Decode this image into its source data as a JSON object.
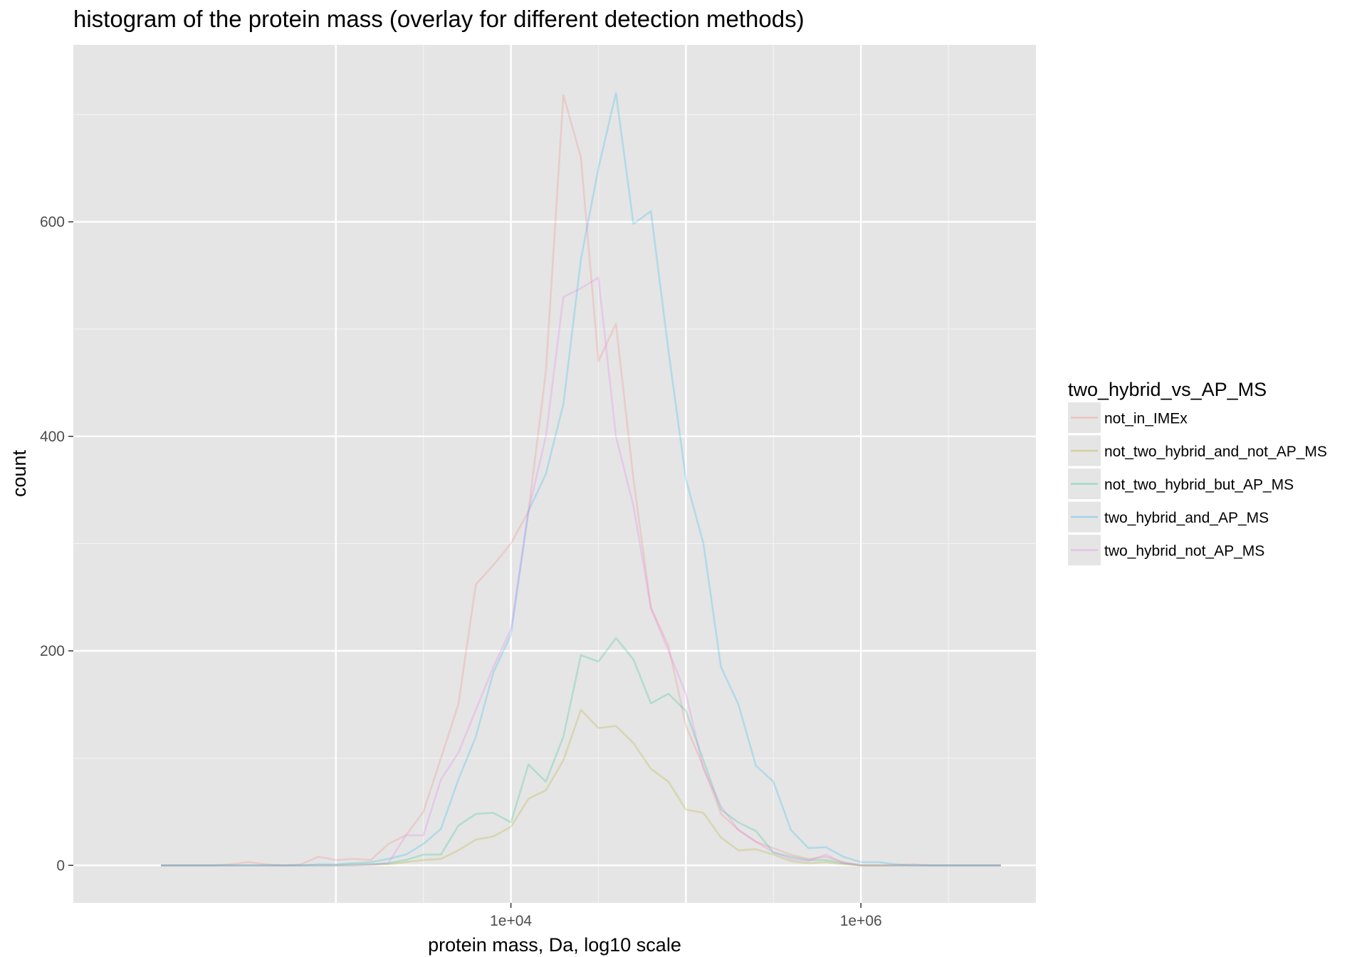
{
  "chart_data": {
    "type": "line",
    "title": "histogram of the protein mass (overlay for different detection methods)",
    "xlabel": "protein mass, Da, log10 scale",
    "ylabel": "count",
    "x_scale": "log10",
    "xlim": [
      31.6,
      10000000
    ],
    "ylim": [
      -35,
      765
    ],
    "x_ticks": [
      {
        "value": 10000,
        "label": "1e+04"
      },
      {
        "value": 1000000,
        "label": "1e+06"
      }
    ],
    "y_ticks": [
      {
        "value": 0,
        "label": "0"
      },
      {
        "value": 200,
        "label": "200"
      },
      {
        "value": 400,
        "label": "400"
      },
      {
        "value": 600,
        "label": "600"
      }
    ],
    "grid": true,
    "background": "#e5e5e5",
    "legend": {
      "title": "two_hybrid_vs_AP_MS",
      "position": "right"
    },
    "x": [
      100,
      126,
      158,
      200,
      251,
      316,
      398,
      501,
      631,
      794,
      1000,
      1259,
      1585,
      1995,
      2512,
      3162,
      3981,
      5012,
      6310,
      7943,
      10000,
      12589,
      15849,
      19953,
      25119,
      31623,
      39811,
      50119,
      63096,
      79433,
      100000,
      125893,
      158489,
      199526,
      251189,
      316228,
      398107,
      501187,
      630957,
      794328,
      1000000,
      1258925,
      1584893,
      1995262,
      2511886,
      3162278,
      3981072,
      5011872,
      6309573
    ],
    "series": [
      {
        "name": "not_in_IMEx",
        "color": "#f8766d",
        "values": [
          0,
          0,
          0,
          0,
          1,
          3,
          1,
          0,
          1,
          8,
          5,
          6,
          5,
          20,
          28,
          50,
          100,
          150,
          262,
          280,
          300,
          330,
          460,
          718,
          660,
          470,
          505,
          360,
          240,
          205,
          130,
          92,
          48,
          33,
          22,
          16,
          10,
          6,
          8,
          3,
          0,
          0,
          0,
          1,
          0,
          0,
          0,
          0,
          0
        ]
      },
      {
        "name": "not_two_hybrid_and_not_AP_MS",
        "color": "#a3a500",
        "values": [
          0,
          0,
          0,
          0,
          0,
          0,
          0,
          0,
          0,
          0,
          0,
          1,
          1,
          1,
          3,
          5,
          6,
          14,
          24,
          27,
          36,
          62,
          70,
          98,
          145,
          128,
          130,
          114,
          90,
          78,
          52,
          49,
          26,
          14,
          15,
          10,
          4,
          2,
          3,
          1,
          0,
          0,
          0,
          0,
          0,
          0,
          0,
          0,
          0
        ]
      },
      {
        "name": "not_two_hybrid_but_AP_MS",
        "color": "#00bf7d",
        "values": [
          0,
          0,
          0,
          0,
          0,
          0,
          0,
          0,
          0,
          0,
          0,
          0,
          1,
          2,
          5,
          10,
          10,
          37,
          48,
          49,
          40,
          94,
          78,
          120,
          196,
          190,
          212,
          192,
          151,
          160,
          144,
          98,
          52,
          40,
          32,
          12,
          8,
          5,
          5,
          2,
          0,
          0,
          0,
          0,
          0,
          0,
          0,
          0,
          0
        ]
      },
      {
        "name": "two_hybrid_and_AP_MS",
        "color": "#00b0f6",
        "values": [
          0,
          0,
          0,
          0,
          0,
          0,
          0,
          0,
          0,
          1,
          1,
          2,
          3,
          6,
          10,
          20,
          34,
          80,
          120,
          180,
          215,
          330,
          365,
          430,
          565,
          650,
          720,
          598,
          610,
          480,
          360,
          300,
          185,
          150,
          93,
          78,
          33,
          16,
          17,
          8,
          3,
          3,
          1,
          0,
          0,
          0,
          0,
          0,
          0
        ]
      },
      {
        "name": "two_hybrid_not_AP_MS",
        "color": "#e76bf3",
        "values": [
          0,
          0,
          0,
          0,
          0,
          0,
          0,
          0,
          0,
          0,
          0,
          0,
          0,
          2,
          28,
          28,
          80,
          105,
          145,
          185,
          220,
          330,
          400,
          530,
          538,
          548,
          400,
          335,
          240,
          200,
          160,
          90,
          55,
          33,
          22,
          12,
          6,
          4,
          10,
          2,
          0,
          0,
          0,
          0,
          0,
          0,
          0,
          0,
          0
        ]
      }
    ]
  }
}
